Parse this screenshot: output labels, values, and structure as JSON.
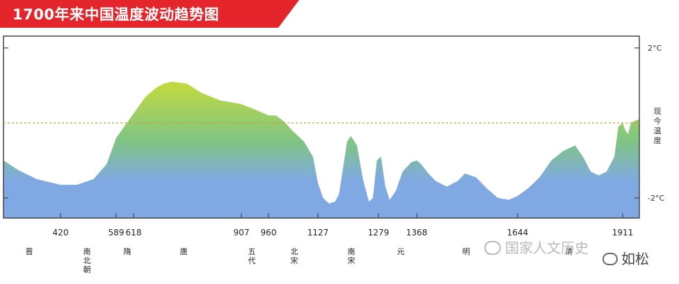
{
  "banner": {
    "title": "1700年来中国温度波动趋势图",
    "color": "#e4252b"
  },
  "chart_data": {
    "type": "area",
    "title": "1700年来中国温度波动趋势图",
    "y_tick_labels": [
      "2°C",
      "-2°C"
    ],
    "reference_line_label": "现今温度",
    "x_tick_labels": [
      "420",
      "589",
      "618",
      "907",
      "960",
      "1127",
      "1279",
      "1368",
      "1644",
      "1911"
    ],
    "dynasties": [
      "晋",
      "南北朝",
      "隋",
      "唐",
      "五代",
      "北宋",
      "南宋",
      "元",
      "明",
      "清"
    ],
    "ylim": [
      -2.5,
      2.2
    ],
    "reference_value": 0,
    "series": [
      {
        "x": [
          300,
          330,
          370,
          420,
          470,
          520,
          560,
          589,
          618,
          650,
          680,
          700,
          720,
          760,
          800,
          850,
          880,
          907,
          935,
          960,
          985,
          1010,
          1040,
          1080,
          1110,
          1127,
          1140,
          1155,
          1170,
          1180,
          1190,
          1200,
          1210,
          1225,
          1240,
          1255,
          1265,
          1275,
          1285,
          1295,
          1305,
          1320,
          1335,
          1355,
          1368,
          1380,
          1400,
          1420,
          1450,
          1480,
          1500,
          1530,
          1560,
          1590,
          1620,
          1644,
          1670,
          1700,
          1730,
          1760,
          1790,
          1810,
          1830,
          1850,
          1870,
          1890,
          1900,
          1911,
          1925,
          1940,
          1955,
          1975,
          2000
        ],
        "y": [
          -1.0,
          -1.25,
          -1.5,
          -1.65,
          -1.65,
          -1.5,
          -1.1,
          -0.4,
          0.25,
          0.7,
          0.95,
          1.05,
          1.1,
          1.05,
          0.8,
          0.6,
          0.55,
          0.5,
          0.35,
          0.2,
          0.2,
          0.05,
          -0.2,
          -0.5,
          -0.9,
          -1.6,
          -2.0,
          -2.15,
          -2.1,
          -1.9,
          -1.2,
          -0.5,
          -0.35,
          -0.6,
          -1.5,
          -2.1,
          -2.0,
          -1.0,
          -0.9,
          -1.7,
          -2.05,
          -1.8,
          -1.3,
          -1.05,
          -1.0,
          -1.1,
          -1.35,
          -1.55,
          -1.7,
          -1.55,
          -1.35,
          -1.45,
          -1.75,
          -2.0,
          -2.05,
          -1.95,
          -1.75,
          -1.45,
          -1.0,
          -0.75,
          -0.6,
          -0.9,
          -1.3,
          -1.4,
          -1.3,
          -0.9,
          -0.1,
          0.0,
          -0.2,
          -0.3,
          0.0,
          0.05,
          0.1
        ]
      }
    ],
    "colors": {
      "high": "#bdd943",
      "mid": "#7fc485",
      "low": "#80a9e3",
      "reference_line": "#d2993c"
    }
  },
  "watermark": {
    "text": "国家人文历史",
    "icon": "chat-bubble-icon"
  },
  "watermark2": {
    "text": "如松",
    "icon": "chat-bubble-icon"
  }
}
